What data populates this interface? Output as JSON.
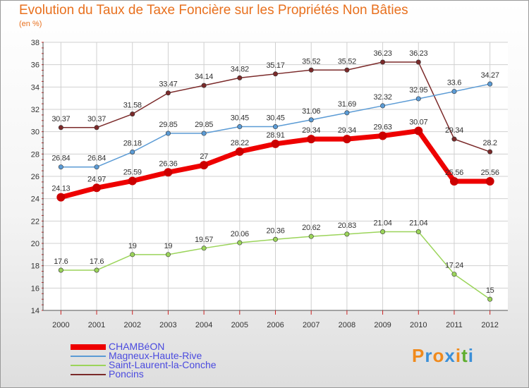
{
  "title": "Evolution du Taux de Taxe Foncière sur les Propriétés Non Bâties",
  "subtitle": "(en %)",
  "brand": {
    "text": "Proxiti",
    "colors": [
      "#f08a1c",
      "#3a8fd8",
      "#f08a1c",
      "#3a8fd8",
      "#f08a1c",
      "#5fae2e",
      "#3a8fd8"
    ]
  },
  "chart_data": {
    "type": "line",
    "x": [
      "2000",
      "2001",
      "2002",
      "2003",
      "2004",
      "2005",
      "2006",
      "2007",
      "2008",
      "2009",
      "2010",
      "2011",
      "2012"
    ],
    "ylim": [
      14,
      38
    ],
    "yticks": [
      "14",
      "16",
      "18",
      "20",
      "22",
      "24",
      "26",
      "28",
      "30",
      "32",
      "34",
      "36",
      "38"
    ],
    "grid": true,
    "legend_position": "bottom-left",
    "series": [
      {
        "name": "Poncins",
        "color": "#7b2a2a",
        "values": [
          30.37,
          30.37,
          31.58,
          33.47,
          34.14,
          34.82,
          35.17,
          35.52,
          35.52,
          36.23,
          36.23,
          29.34,
          28.2
        ],
        "labels": [
          "30.37",
          "30.37",
          "31.58",
          "33.47",
          "34.14",
          "34.82",
          "35.17",
          "35.52",
          "35.52",
          "36.23",
          "36.23",
          "29.34",
          "28.2"
        ]
      },
      {
        "name": "Magneux-Haute-Rive",
        "color": "#5b9bd5",
        "values": [
          26.84,
          26.84,
          28.18,
          29.85,
          29.85,
          30.45,
          30.45,
          31.06,
          31.69,
          32.32,
          32.95,
          33.6,
          34.27
        ],
        "labels": [
          "26.84",
          "26.84",
          "28.18",
          "29.85",
          "29.85",
          "30.45",
          "30.45",
          "31.06",
          "31.69",
          "32.32",
          "32.95",
          "33.6",
          "34.27"
        ]
      },
      {
        "name": "Saint-Laurent-la-Conche",
        "color": "#9bd45a",
        "values": [
          17.6,
          17.6,
          19,
          19,
          19.57,
          20.06,
          20.36,
          20.62,
          20.83,
          21.04,
          21.04,
          17.24,
          15
        ],
        "labels": [
          "17.6",
          "17.6",
          "19",
          "19",
          "19.57",
          "20.06",
          "20.36",
          "20.62",
          "20.83",
          "21.04",
          "21.04",
          "17.24",
          "15"
        ]
      },
      {
        "name": "CHAMBéON",
        "color": "#ee0000",
        "highlight": true,
        "values": [
          24.13,
          24.97,
          25.59,
          26.36,
          27,
          28.22,
          28.91,
          29.34,
          29.34,
          29.63,
          30.07,
          25.56,
          25.56
        ],
        "labels": [
          "24.13",
          "24.97",
          "25.59",
          "26.36",
          "27",
          "28.22",
          "28.91",
          "29.34",
          "29.34",
          "29.63",
          "30.07",
          "25.56",
          "25.56"
        ]
      }
    ],
    "legend_order": [
      "CHAMBéON",
      "Magneux-Haute-Rive",
      "Saint-Laurent-la-Conche",
      "Poncins"
    ]
  }
}
